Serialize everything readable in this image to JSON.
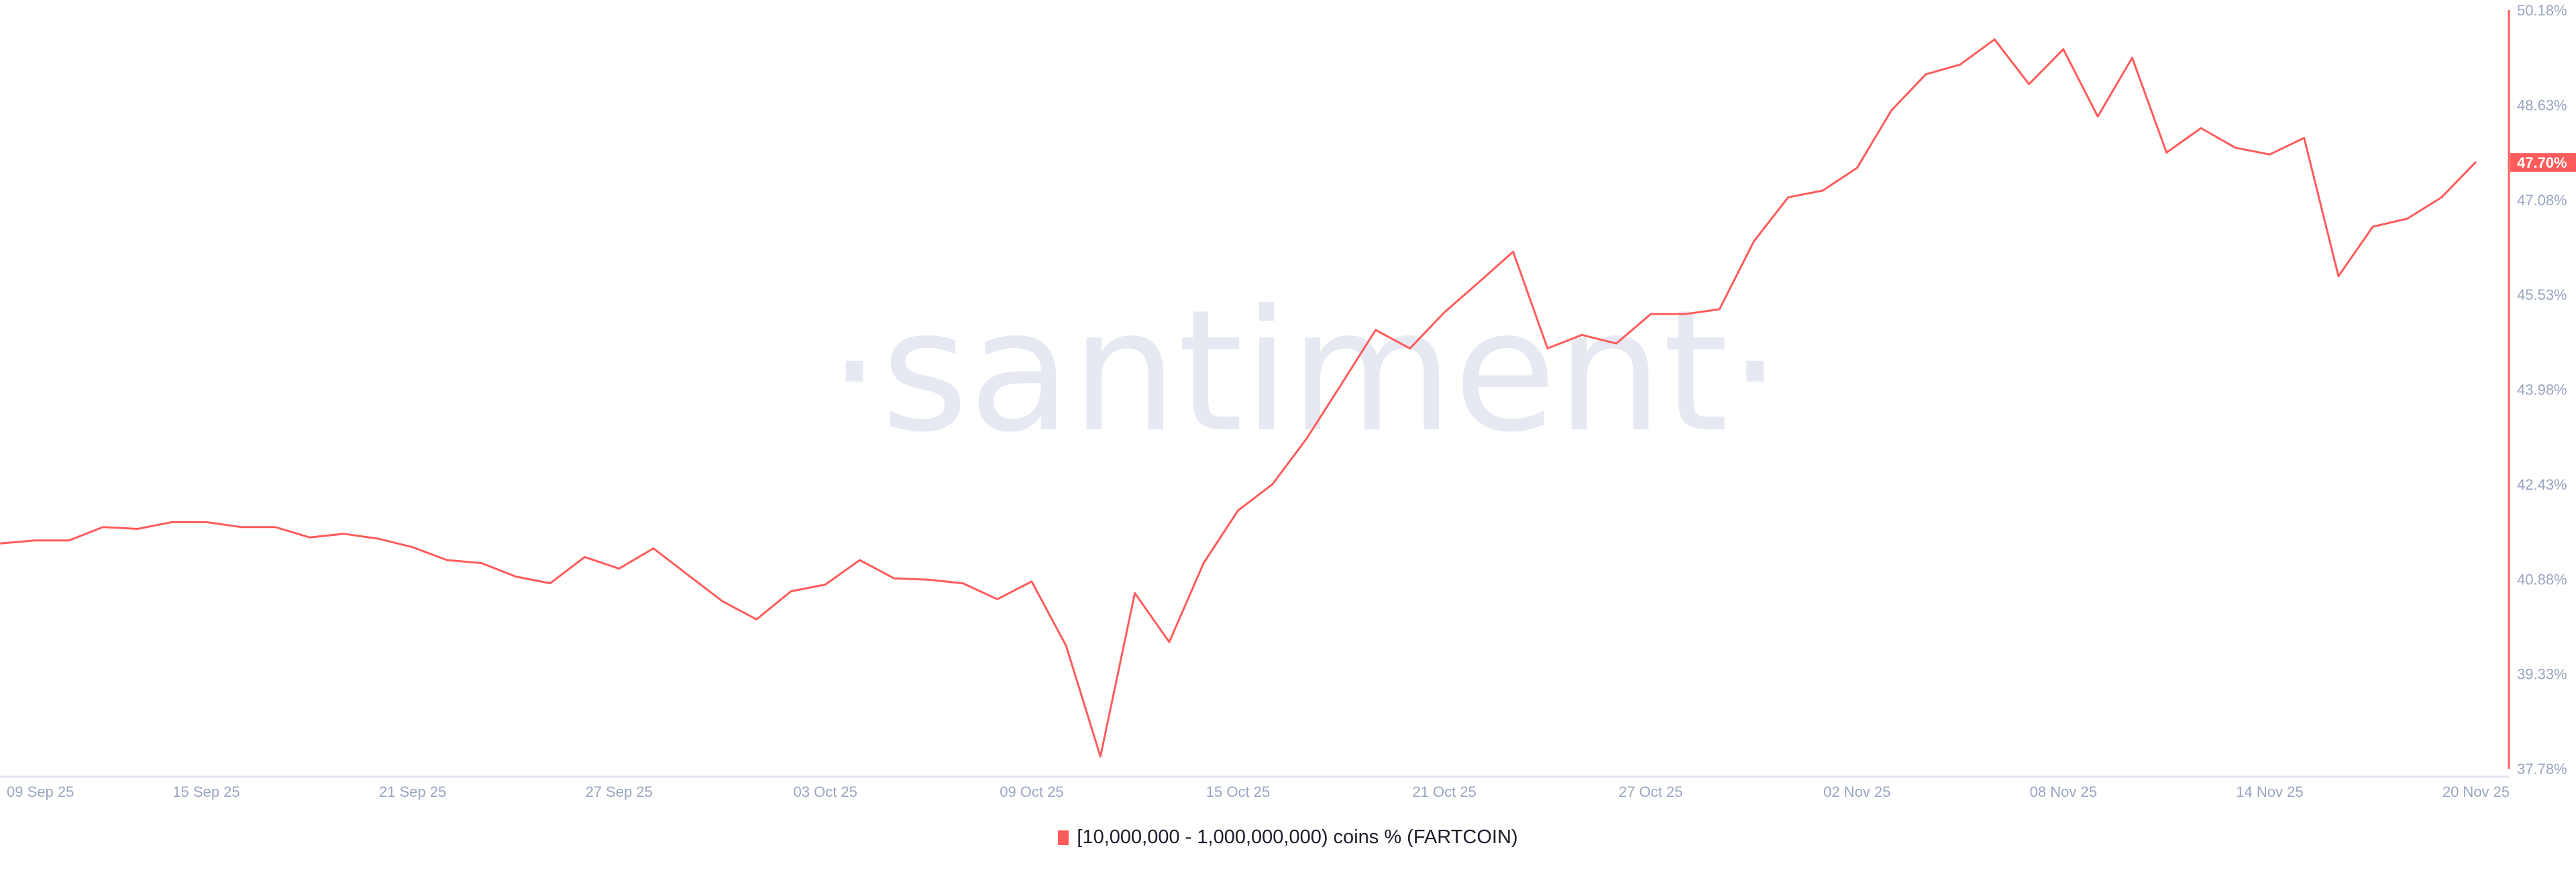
{
  "chart_data": {
    "type": "line",
    "title": "",
    "xlabel": "",
    "ylabel": "",
    "watermark": "·santiment·",
    "ylim": [
      37.78,
      50.18
    ],
    "y_ticks": [
      "50.18%",
      "48.63%",
      "47.08%",
      "45.53%",
      "43.98%",
      "42.43%",
      "40.88%",
      "39.33%",
      "37.78%"
    ],
    "y_tick_values": [
      50.18,
      48.63,
      47.08,
      45.53,
      43.98,
      42.43,
      40.88,
      39.33,
      37.78
    ],
    "x_ticks": [
      "09 Sep 25",
      "15 Sep 25",
      "21 Sep 25",
      "27 Sep 25",
      "03 Oct 25",
      "09 Oct 25",
      "15 Oct 25",
      "21 Oct 25",
      "27 Oct 25",
      "02 Nov 25",
      "08 Nov 25",
      "14 Nov 25",
      "20 Nov 25"
    ],
    "x_tick_day_index": [
      0,
      6,
      12,
      18,
      24,
      30,
      36,
      42,
      48,
      54,
      60,
      66,
      72
    ],
    "x_start": "09 Sep 25",
    "x_end": "20 Nov 25",
    "current_value_label": "47.70%",
    "grid": false,
    "legend_position": "bottom",
    "series": [
      {
        "name": "[10,000,000 - 1,000,000,000) coins % (FARTCOIN)",
        "color": "#ff5b5b",
        "values": [
          41.46,
          41.51,
          41.51,
          41.73,
          41.7,
          41.81,
          41.81,
          41.73,
          41.73,
          41.56,
          41.62,
          41.54,
          41.4,
          41.19,
          41.14,
          40.92,
          40.81,
          41.24,
          41.05,
          41.38,
          40.95,
          40.52,
          40.22,
          40.68,
          40.79,
          41.19,
          40.89,
          40.87,
          40.81,
          40.55,
          40.84,
          39.79,
          37.98,
          40.65,
          39.85,
          41.14,
          42.0,
          42.43,
          43.18,
          44.06,
          44.95,
          44.65,
          45.24,
          45.73,
          46.23,
          44.65,
          44.87,
          44.73,
          45.21,
          45.21,
          45.29,
          46.4,
          47.12,
          47.23,
          47.6,
          48.54,
          49.13,
          49.29,
          49.7,
          48.97,
          49.54,
          48.44,
          49.4,
          47.85,
          48.25,
          47.93,
          47.82,
          48.09,
          45.83,
          46.64,
          46.77,
          47.12,
          47.7
        ]
      }
    ]
  }
}
